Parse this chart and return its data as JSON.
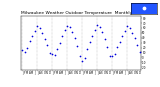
{
  "title": "Milwaukee Weather Outdoor Temperature  Monthly Low",
  "title_fontsize": 3.2,
  "dot_color": "#0000dd",
  "dot_size": 1.5,
  "background_color": "#ffffff",
  "grid_color": "#888888",
  "legend_facecolor": "#2255ff",
  "legend_edgecolor": "#000000",
  "xlim": [
    -0.5,
    47.5
  ],
  "ylim": [
    -25,
    85
  ],
  "yticks": [
    -20,
    -10,
    0,
    10,
    20,
    30,
    40,
    50,
    60,
    70,
    80
  ],
  "ytick_labels": [
    "-20",
    "-10",
    "0",
    "10",
    "20",
    "30",
    "40",
    "50",
    "60",
    "70",
    "80"
  ],
  "data": [
    [
      0,
      14
    ],
    [
      1,
      10
    ],
    [
      2,
      20
    ],
    [
      3,
      34
    ],
    [
      4,
      43
    ],
    [
      5,
      54
    ],
    [
      6,
      63
    ],
    [
      7,
      60
    ],
    [
      8,
      50
    ],
    [
      9,
      37
    ],
    [
      10,
      25
    ],
    [
      11,
      8
    ],
    [
      12,
      6
    ],
    [
      13,
      5
    ],
    [
      14,
      17
    ],
    [
      15,
      30
    ],
    [
      16,
      44
    ],
    [
      17,
      55
    ],
    [
      18,
      64
    ],
    [
      19,
      61
    ],
    [
      20,
      51
    ],
    [
      21,
      39
    ],
    [
      22,
      24
    ],
    [
      23,
      2
    ],
    [
      24,
      -8
    ],
    [
      25,
      -2
    ],
    [
      26,
      18
    ],
    [
      27,
      31
    ],
    [
      28,
      44
    ],
    [
      29,
      55
    ],
    [
      30,
      65
    ],
    [
      31,
      62
    ],
    [
      32,
      52
    ],
    [
      33,
      37
    ],
    [
      34,
      22
    ],
    [
      35,
      3
    ],
    [
      36,
      2
    ],
    [
      37,
      7
    ],
    [
      38,
      21
    ],
    [
      39,
      32
    ],
    [
      40,
      43
    ],
    [
      41,
      54
    ],
    [
      42,
      63
    ],
    [
      43,
      60
    ],
    [
      44,
      50
    ],
    [
      45,
      39
    ],
    [
      46,
      25
    ],
    [
      47,
      10
    ]
  ],
  "grid_positions": [
    0,
    6,
    12,
    18,
    24,
    30,
    36,
    42,
    47.5
  ],
  "xtick_positions": [
    0,
    1,
    2,
    3,
    4,
    5,
    6,
    7,
    8,
    9,
    10,
    11,
    12,
    13,
    14,
    15,
    16,
    17,
    18,
    19,
    20,
    21,
    22,
    23,
    24,
    25,
    26,
    27,
    28,
    29,
    30,
    31,
    32,
    33,
    34,
    35,
    36,
    37,
    38,
    39,
    40,
    41,
    42,
    43,
    44,
    45,
    46,
    47
  ],
  "xtick_labels": [
    "J",
    "F",
    "M",
    "A",
    "M",
    "J",
    "J",
    "A",
    "S",
    "O",
    "N",
    "D",
    "J",
    "F",
    "M",
    "A",
    "M",
    "J",
    "J",
    "A",
    "S",
    "O",
    "N",
    "D",
    "J",
    "F",
    "M",
    "A",
    "M",
    "J",
    "J",
    "A",
    "S",
    "O",
    "N",
    "D",
    "J",
    "F",
    "M",
    "A",
    "M",
    "J",
    "J",
    "A",
    "S",
    "O",
    "N",
    "D"
  ]
}
